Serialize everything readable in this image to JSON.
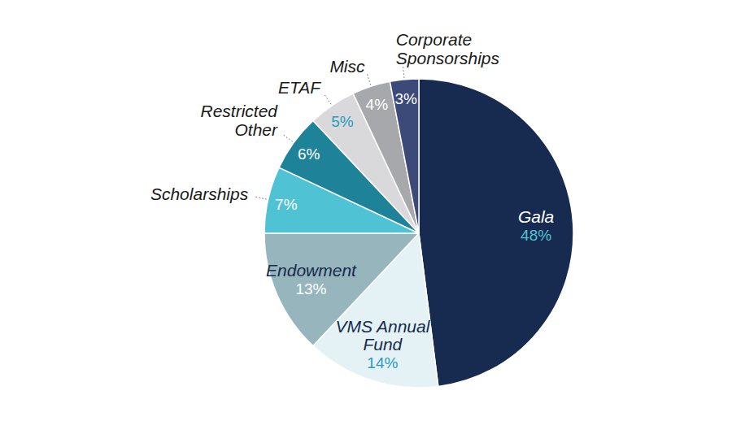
{
  "chart_data": {
    "type": "pie",
    "categories": [
      "Gala",
      "VMS Annual Fund",
      "Endowment",
      "Scholarships",
      "Restricted Other",
      "ETAF",
      "Misc",
      "Corporate Sponsorships"
    ],
    "values": [
      48,
      14,
      13,
      7,
      6,
      5,
      4,
      3
    ],
    "value_labels": [
      "48%",
      "14%",
      "13%",
      "7%",
      "6%",
      "5%",
      "4%",
      "3%"
    ],
    "colors": [
      "#172a4f",
      "#e4f2f6",
      "#96b5bc",
      "#4fc3d3",
      "#1e8399",
      "#d9d9db",
      "#a6a8ab",
      "#3b4a78"
    ],
    "data_labels": true
  }
}
